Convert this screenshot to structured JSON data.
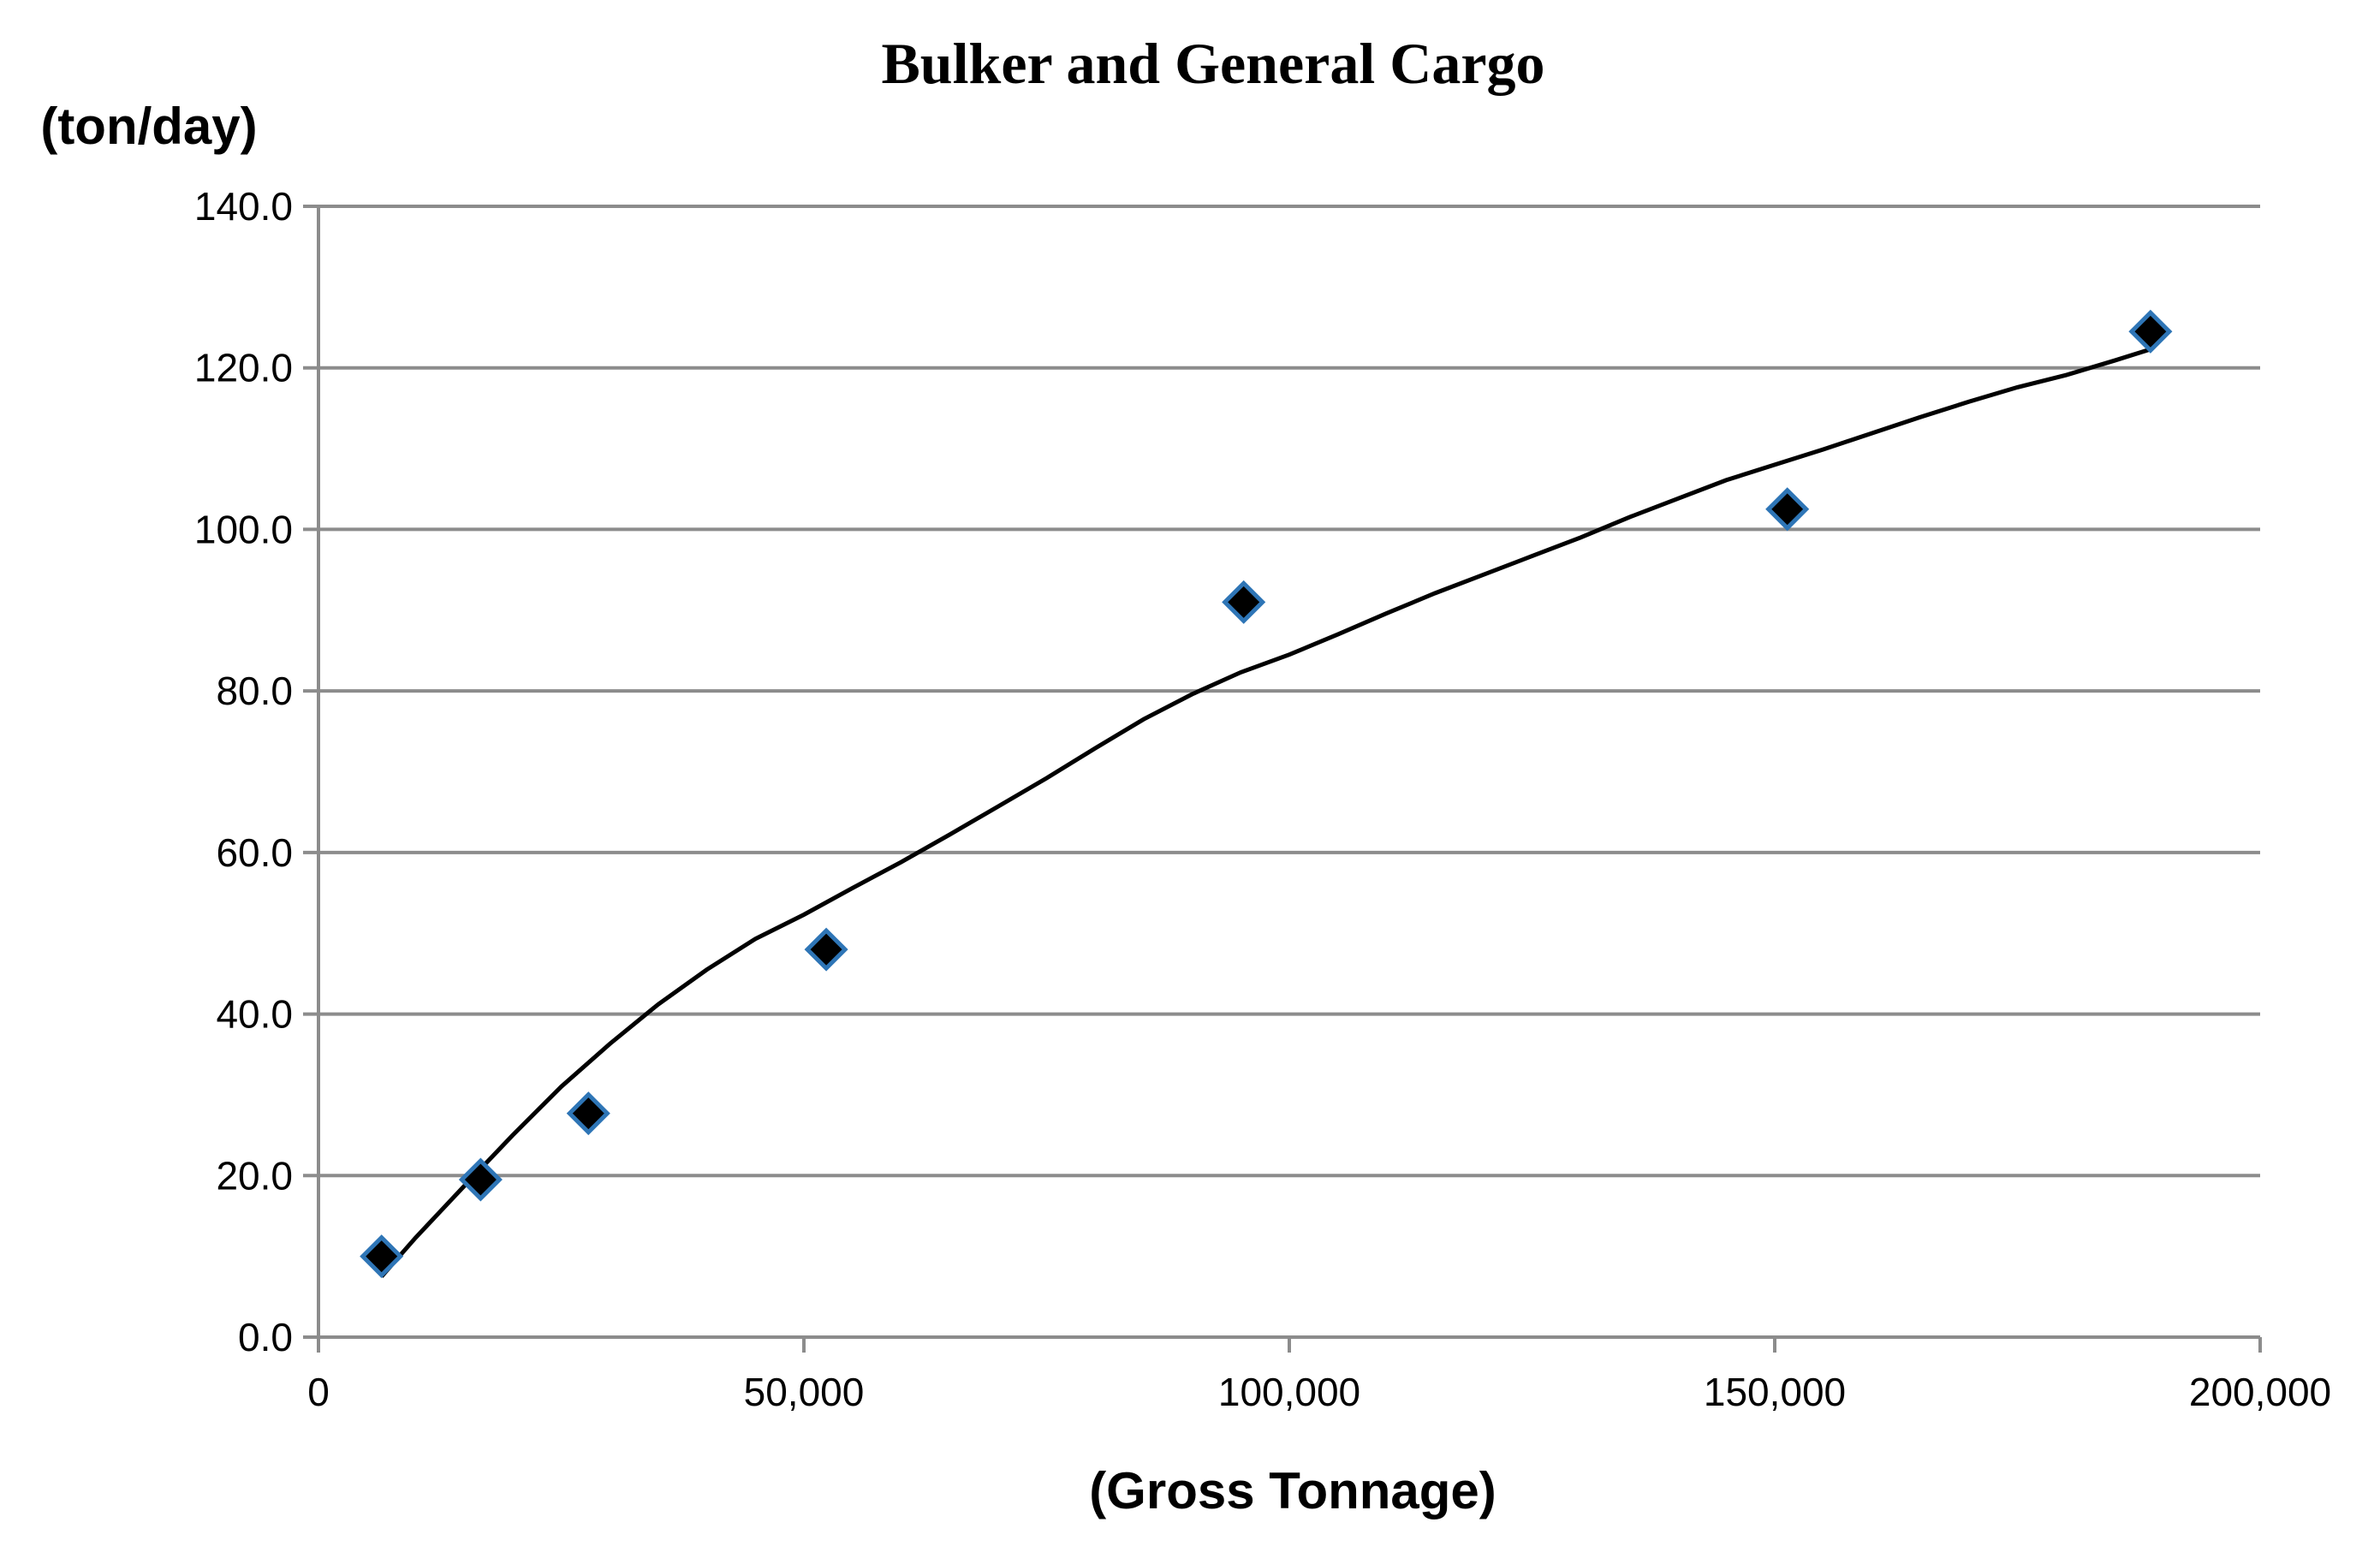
{
  "chart_data": {
    "type": "scatter",
    "title": "Bulker and General Cargo",
    "xlabel": "(Gross Tonnage)",
    "ylabel": "(ton/day)",
    "xlim": [
      0,
      200000
    ],
    "ylim": [
      0,
      140
    ],
    "x_ticks": [
      0,
      50000,
      100000,
      150000,
      200000
    ],
    "x_tick_labels": [
      "0",
      "50,000",
      "100,000",
      "150,000",
      "200,000"
    ],
    "y_ticks": [
      0,
      20,
      40,
      60,
      80,
      100,
      120,
      140
    ],
    "y_tick_labels": [
      "0.0",
      "20.0",
      "40.0",
      "60.0",
      "80.0",
      "100.0",
      "120.0",
      "140.0"
    ],
    "grid": true,
    "legend": "none",
    "series": [
      {
        "marker": "diamond",
        "fill_color": "#000000",
        "edge_color": "#2e75b6",
        "x": [
          6500,
          16700,
          27800,
          52300,
          95300,
          151300,
          188700
        ],
        "y": [
          10.0,
          19.5,
          27.7,
          48.0,
          91.0,
          102.5,
          124.5
        ]
      }
    ],
    "trendline": {
      "color": "#000000",
      "x": [
        6500,
        10000,
        15000,
        20000,
        25000,
        30000,
        35000,
        40000,
        45000,
        50000,
        55000,
        60000,
        65000,
        70000,
        75000,
        80000,
        85000,
        90000,
        95000,
        100000,
        105000,
        110000,
        115000,
        120000,
        125000,
        130000,
        135000,
        140000,
        145000,
        150000,
        155000,
        160000,
        165000,
        170000,
        175000,
        180000,
        185000,
        188700
      ],
      "y": [
        7.5,
        12.3,
        18.7,
        25.0,
        31.0,
        36.3,
        41.2,
        45.5,
        49.3,
        52.3,
        55.6,
        58.8,
        62.2,
        65.7,
        69.2,
        72.9,
        76.5,
        79.6,
        82.3,
        84.5,
        87.0,
        89.6,
        92.1,
        94.4,
        96.7,
        99.0,
        101.5,
        103.8,
        106.1,
        108.0,
        109.9,
        111.9,
        113.9,
        115.8,
        117.6,
        119.1,
        120.9,
        122.3
      ]
    }
  }
}
